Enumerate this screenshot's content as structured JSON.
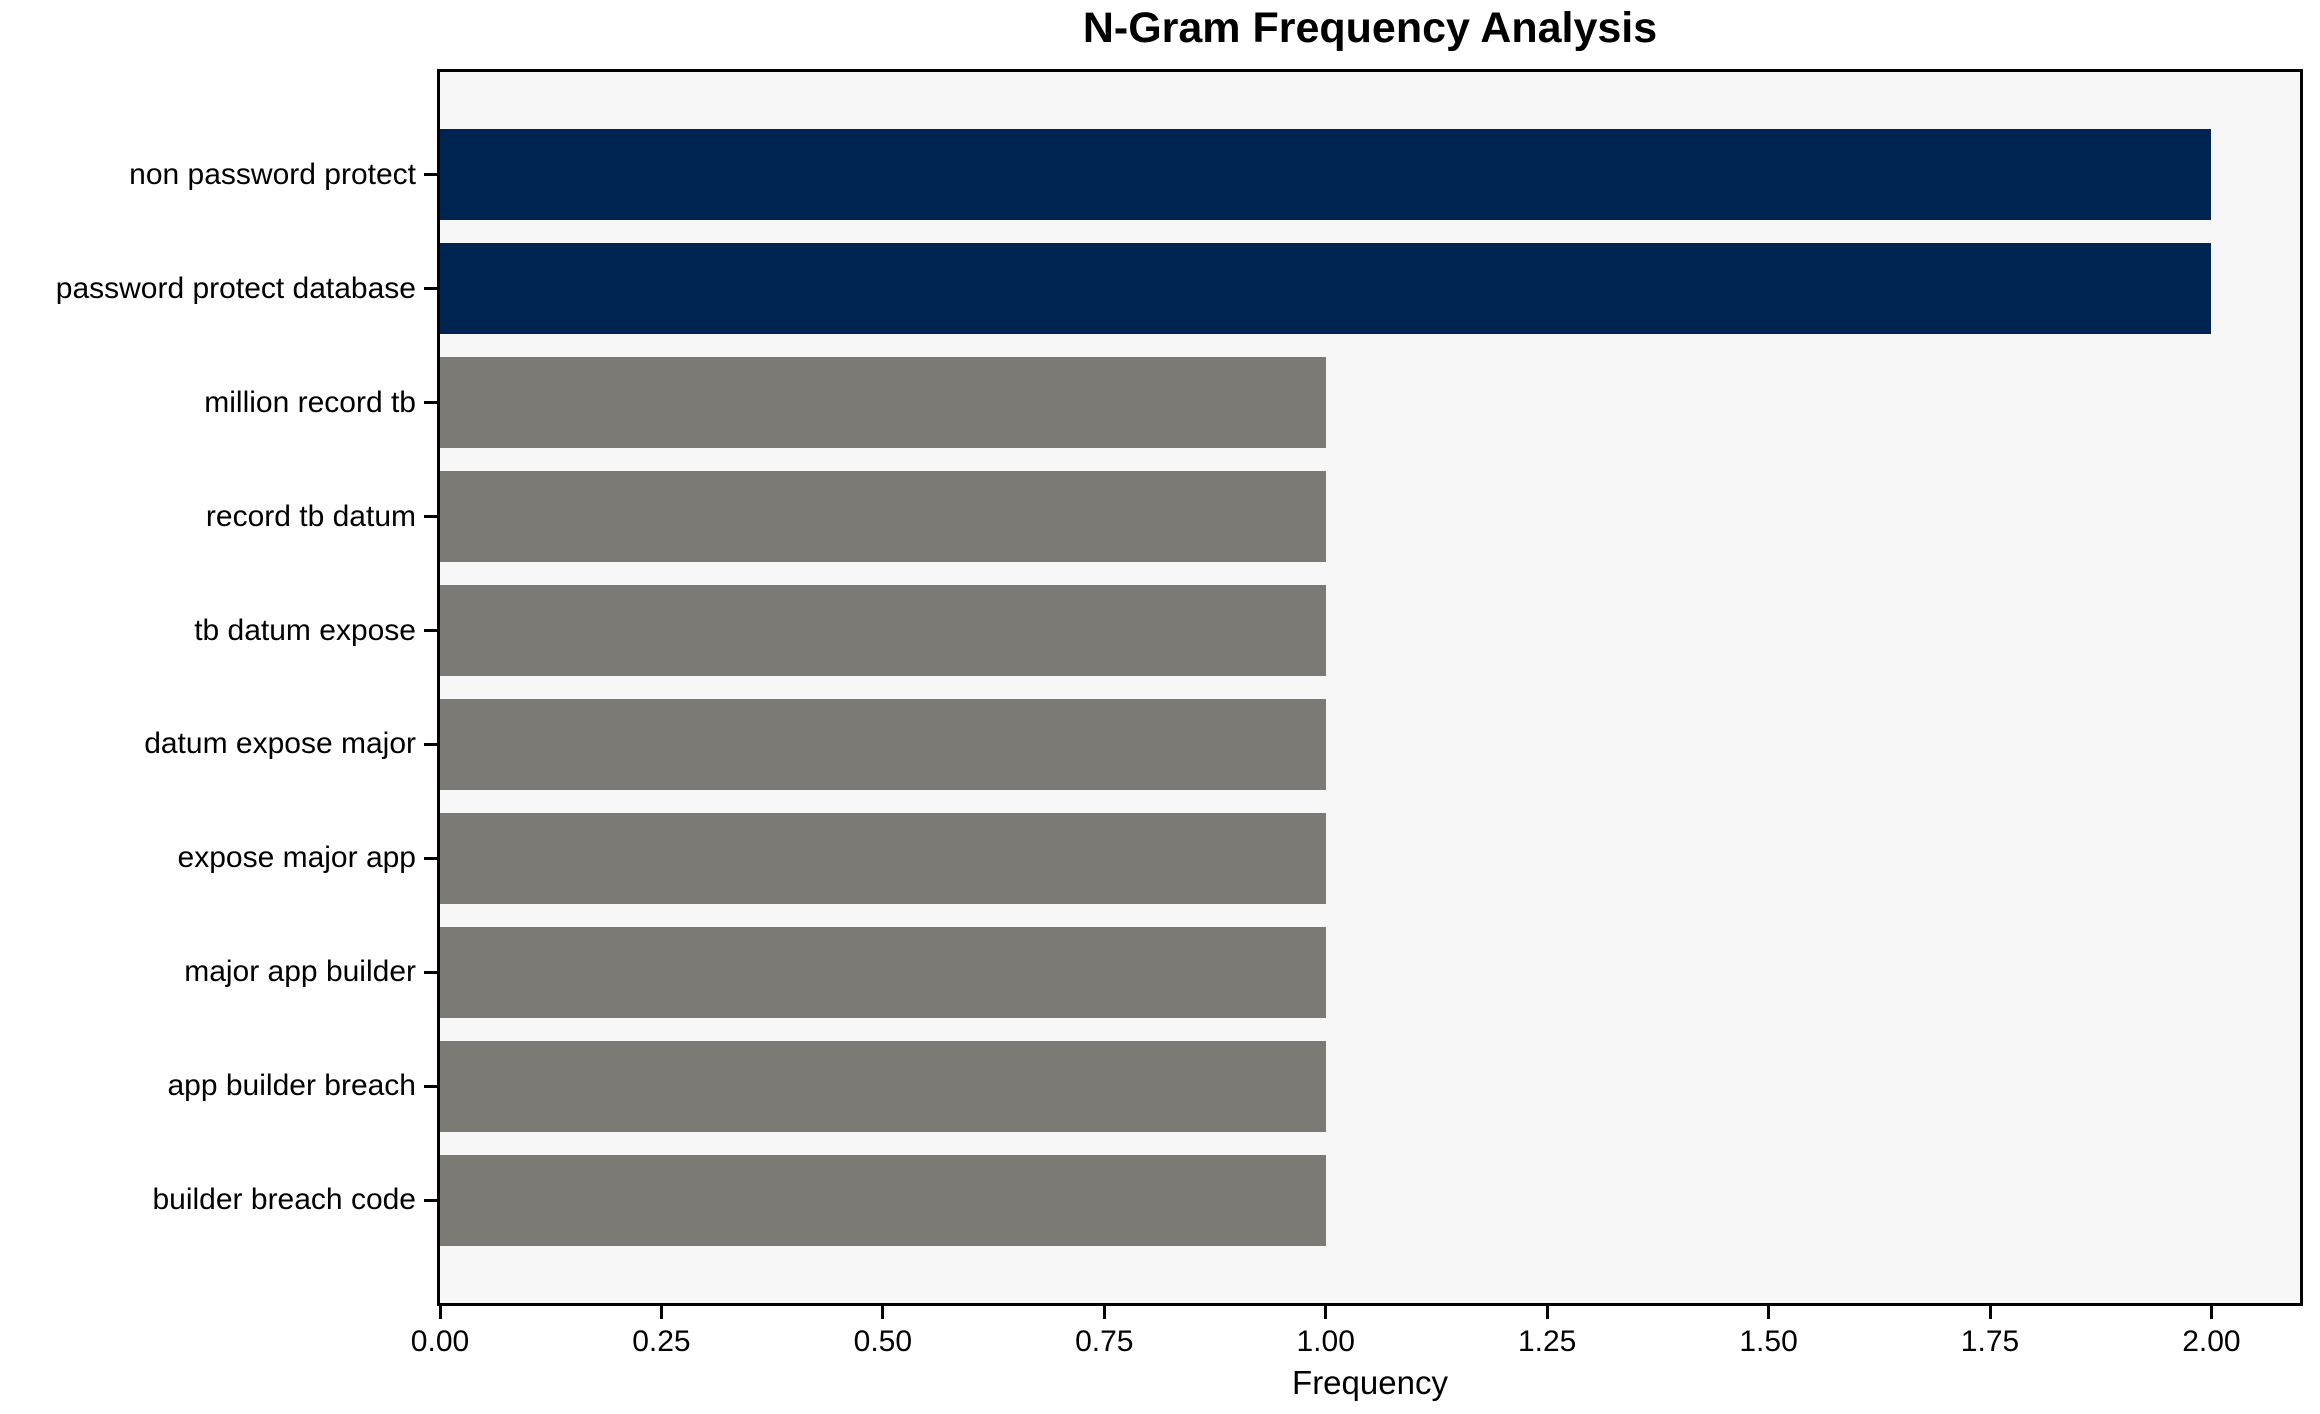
{
  "chart_data": {
    "type": "bar",
    "orientation": "horizontal",
    "title": "N-Gram Frequency Analysis",
    "xlabel": "Frequency",
    "ylabel": "",
    "categories": [
      "non password protect",
      "password protect database",
      "million record tb",
      "record tb datum",
      "tb datum expose",
      "datum expose major",
      "expose major app",
      "major app builder",
      "app builder breach",
      "builder breach code"
    ],
    "values": [
      2,
      2,
      1,
      1,
      1,
      1,
      1,
      1,
      1,
      1
    ],
    "xlim": [
      0,
      2.1
    ],
    "xticks": [
      0,
      0.25,
      0.5,
      0.75,
      1.0,
      1.25,
      1.5,
      1.75,
      2.0
    ],
    "xtick_labels": [
      "0.00",
      "0.25",
      "0.50",
      "0.75",
      "1.00",
      "1.25",
      "1.50",
      "1.75",
      "2.00"
    ],
    "bar_colors": [
      "#002451",
      "#002451",
      "#7b7a75",
      "#7b7a75",
      "#7b7a75",
      "#7b7a75",
      "#7b7a75",
      "#7b7a75",
      "#7b7a75",
      "#7b7a75"
    ],
    "colors": {
      "highlight_bar": "#002451",
      "regular_bar": "#7b7a75",
      "plot_background": "#f7f7f7",
      "figure_background": "#ffffff",
      "axis": "#000000"
    },
    "grid": false,
    "legend": false
  }
}
